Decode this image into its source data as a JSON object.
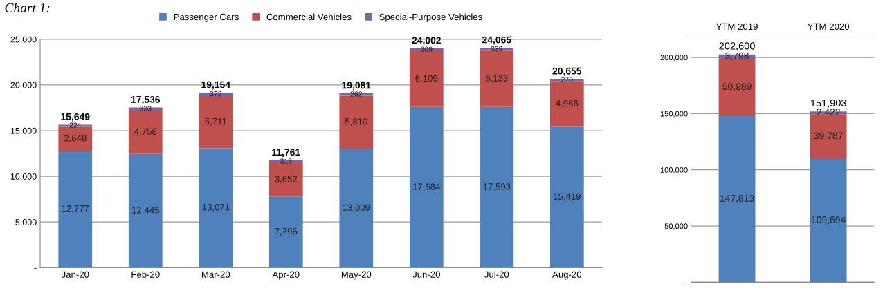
{
  "chart_data": [
    {
      "type": "bar",
      "stacked": true,
      "grid": "y",
      "legend": "top",
      "annotations": [
        "Chart 1:"
      ],
      "categories": [
        "Jan-20",
        "Feb-20",
        "Mar-20",
        "Apr-20",
        "May-20",
        "Jun-20",
        "Jul-20",
        "Aug-20"
      ],
      "series": [
        {
          "name": "Passenger Cars",
          "color": "#4f81bd",
          "values": [
            12777,
            12445,
            13071,
            7796,
            13009,
            17584,
            17593,
            15419
          ],
          "value_labels": [
            "12,777",
            "12,445",
            "13,071",
            "7,796",
            "13,009",
            "17,584",
            "17,593",
            "15,419"
          ]
        },
        {
          "name": "Commercial Vehicles",
          "color": "#c0504d",
          "values": [
            2648,
            4758,
            5711,
            3652,
            5810,
            6109,
            6133,
            4966
          ],
          "value_labels": [
            "2,648",
            "4,758",
            "5,711",
            "3,652",
            "5,810",
            "6,109",
            "6,133",
            "4,966"
          ]
        },
        {
          "name": "Special-Purpose Vehicles",
          "color": "#8064a2",
          "values": [
            224,
            333,
            372,
            313,
            262,
            309,
            339,
            270
          ],
          "value_labels": [
            "224",
            "333",
            "372",
            "313",
            "262",
            "309",
            "339",
            "270"
          ]
        }
      ],
      "totals": [
        "15,649",
        "17,536",
        "19,154",
        "11,761",
        "19,081",
        "24,002",
        "24,065",
        "20,655"
      ],
      "ylim": [
        0,
        25000
      ],
      "yticks": [
        {
          "value": 0,
          "label": "-"
        },
        {
          "value": 5000,
          "label": "5,000"
        },
        {
          "value": 10000,
          "label": "10,000"
        },
        {
          "value": 15000,
          "label": "15,000"
        },
        {
          "value": 20000,
          "label": "20,000"
        },
        {
          "value": 25000,
          "label": "25,000"
        }
      ]
    },
    {
      "type": "bar",
      "stacked": true,
      "grid": "y",
      "categories": [
        "YTM 2019",
        "YTM 2020"
      ],
      "series": [
        {
          "color": "#4f81bd",
          "values": [
            147813,
            109694
          ],
          "value_labels": [
            "147,813",
            "109,694"
          ]
        },
        {
          "color": "#c0504d",
          "values": [
            50989,
            39787
          ],
          "value_labels": [
            "50,989",
            "39,787"
          ]
        },
        {
          "color": "#8064a2",
          "values": [
            3798,
            2422
          ],
          "value_labels": [
            "3,798",
            "2,422"
          ]
        }
      ],
      "totals": [
        "202,600",
        "151,903"
      ],
      "ylim": [
        0,
        220000
      ],
      "yticks": [
        {
          "value": 0,
          "label": "-"
        },
        {
          "value": 50000,
          "label": "50,000"
        },
        {
          "value": 100000,
          "label": "100,000"
        },
        {
          "value": 150000,
          "label": "150,000"
        },
        {
          "value": 200000,
          "label": "200,000"
        }
      ]
    }
  ]
}
